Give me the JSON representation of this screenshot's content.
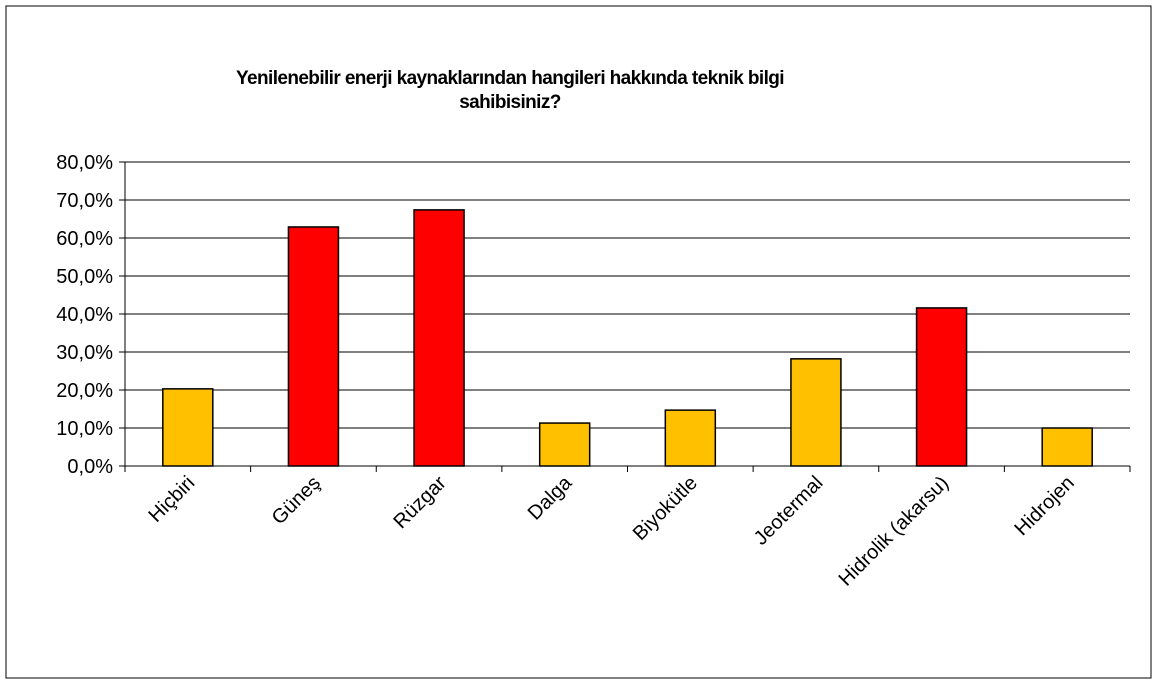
{
  "chart_data": {
    "type": "bar",
    "title": [
      "Yenilenebilir enerji kaynaklarından hangileri hakkında teknik bilgi",
      "sahibisiniz?"
    ],
    "categories": [
      "Hiçbiri",
      "Güneş",
      "Rüzgar",
      "Dalga",
      "Biyokütle",
      "Jeotermal",
      "Hidrolik (akarsu)",
      "Hidrojen"
    ],
    "values": [
      20.3,
      62.9,
      67.4,
      11.3,
      14.7,
      28.2,
      41.6,
      10.0
    ],
    "colors": [
      "#ffc000",
      "#ff0000",
      "#ff0000",
      "#ffc000",
      "#ffc000",
      "#ffc000",
      "#ff0000",
      "#ffc000"
    ],
    "ylim": [
      0,
      80
    ],
    "yticks": [
      {
        "value": 0,
        "label": "0,0%"
      },
      {
        "value": 10,
        "label": "10,0%"
      },
      {
        "value": 20,
        "label": "20,0%"
      },
      {
        "value": 30,
        "label": "30,0%"
      },
      {
        "value": 40,
        "label": "40,0%"
      },
      {
        "value": 50,
        "label": "50,0%"
      },
      {
        "value": 60,
        "label": "60,0%"
      },
      {
        "value": 70,
        "label": "70,0%"
      },
      {
        "value": 80,
        "label": "80,0%"
      }
    ],
    "grid": true
  }
}
